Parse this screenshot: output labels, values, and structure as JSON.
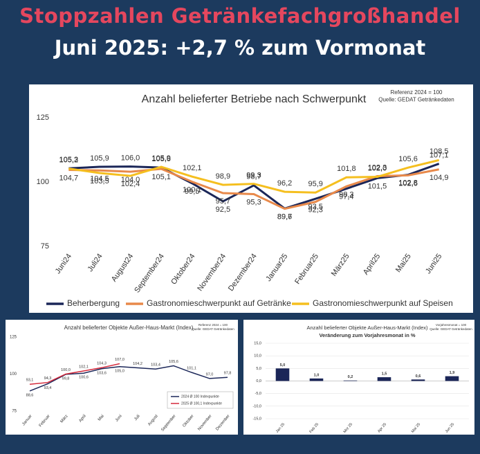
{
  "header": {
    "title": "Stoppzahlen Getränkefachgroßhandel",
    "subtitle": "Juni 2025: +2,7 % zum Vormonat"
  },
  "chart_data": [
    {
      "type": "line",
      "title": "Anzahl belieferter Betriebe nach Schwerpunkt",
      "annotations": [
        "Referenz 2024 = 100",
        "Quelle: GEDAT Getränkedaten"
      ],
      "categories": [
        "Juni24",
        "Juli24",
        "August24",
        "September24",
        "Oktober24",
        "November24",
        "Dezember24",
        "Januar25",
        "Februar25",
        "März25",
        "April25",
        "Mai25",
        "Juni25"
      ],
      "series": [
        {
          "name": "Beherbergung",
          "color": "#1b2658",
          "values": [
            105.3,
            105.9,
            106.0,
            105.6,
            99.5,
            92.5,
            98.7,
            89.7,
            93.5,
            97.4,
            101.5,
            102.8,
            107.1
          ],
          "value_labels": [
            "105,3",
            "105,9",
            "106,0",
            "105,6",
            "99,5",
            "92,5",
            "98,7",
            "89,7",
            "93,5",
            "97,4",
            "101,5",
            "102,8",
            "107,1"
          ]
        },
        {
          "name": "Gastronomieschwerpunkt auf Getränke",
          "color": "#e8894a",
          "values": [
            104.7,
            104.5,
            104.0,
            105.1,
            100.1,
            95.7,
            95.3,
            89.6,
            92.3,
            98.3,
            102.3,
            102.6,
            104.9
          ],
          "value_labels": [
            "104,7",
            "104,5",
            "104,0",
            "105,1",
            "100,1",
            "95,7",
            "95,3",
            "89,6",
            "92,3",
            "98,3",
            "102,3",
            "102,6",
            "104,9"
          ]
        },
        {
          "name": "Gastronomieschwerpunkt auf Speisen",
          "color": "#f5bf1f",
          "values": [
            105.2,
            103.5,
            102.4,
            105.9,
            102.1,
            98.9,
            99.3,
            96.2,
            95.9,
            101.8,
            102.0,
            105.6,
            108.5
          ],
          "value_labels": [
            "105,2",
            "103,5",
            "102,4",
            "105,9",
            "102,1",
            "98,9",
            "99,3",
            "96,2",
            "95,9",
            "101,8",
            "102,0",
            "105,6",
            "108,5"
          ]
        }
      ],
      "ylim": [
        75,
        125
      ],
      "yticks": [
        75,
        100,
        125
      ],
      "grid": false,
      "legend": "bottom"
    },
    {
      "type": "line",
      "title": "Anzahl belieferter Objekte Außer-Haus-Markt (Index)",
      "annotations": [
        "Referenz 2024 = 100",
        "Quelle: GEDAT Getränkedaten"
      ],
      "categories": [
        "Januar",
        "Februar",
        "März",
        "April",
        "Mai",
        "Juni",
        "Juli",
        "August",
        "September",
        "Oktober",
        "November",
        "Dezember"
      ],
      "series": [
        {
          "name": "2024 Ø 100 Indexpunkte",
          "color": "#1b2658",
          "values": [
            88.6,
            93.4,
            99.8,
            100.6,
            103.6,
            105.0,
            104.2,
            103.4,
            105.6,
            101.1,
            97.0,
            97.8
          ],
          "value_labels": [
            "88,6",
            "93,4",
            "99,8",
            "100,6",
            "103,6",
            "105,0",
            "104,2",
            "103,4",
            "105,6",
            "101,1",
            "97,0",
            "97,8"
          ]
        },
        {
          "name": "2025 Ø 100,1 Indexpunkte",
          "color": "#d4283a",
          "values": [
            93.1,
            94.3,
            100.0,
            102.1,
            104.3,
            107.0,
            null,
            null,
            null,
            null,
            null,
            null
          ],
          "value_labels": [
            "93,1",
            "94,3",
            "100,0",
            "102,1",
            "104,3",
            "107,0",
            null,
            null,
            null,
            null,
            null,
            null
          ]
        }
      ],
      "ylim": [
        75,
        125
      ],
      "yticks": [
        75,
        100,
        125
      ],
      "grid": false,
      "legend": "lower right"
    },
    {
      "type": "bar",
      "title": "Anzahl belieferter Objekte Außer-Haus-Markt (Index)",
      "subtitle": "Veränderung zum Vorjahresmonat in %",
      "annotations": [
        "Vorjahresmonat = 100",
        "Quelle: GEDAT Getränkedaten"
      ],
      "categories": [
        "Jan 25",
        "Feb 25",
        "Mrz 25",
        "Apr 25",
        "Mai 25",
        "Jun 25"
      ],
      "values": [
        5.0,
        1.0,
        0.2,
        1.5,
        0.6,
        1.9
      ],
      "value_labels": [
        "5,0",
        "1,0",
        "0,2",
        "1,5",
        "0,6",
        "1,9"
      ],
      "color": "#1b2658",
      "ylim": [
        -15,
        15
      ],
      "yticks": [
        {
          "value": -15,
          "label": "-15,0"
        },
        {
          "value": -10,
          "label": "-10,0"
        },
        {
          "value": -5,
          "label": "-5,0"
        },
        {
          "value": 0,
          "label": "0,0"
        },
        {
          "value": 5,
          "label": "5,0"
        },
        {
          "value": 10,
          "label": "10,0"
        },
        {
          "value": 15,
          "label": "15,0"
        }
      ],
      "grid": true
    }
  ]
}
